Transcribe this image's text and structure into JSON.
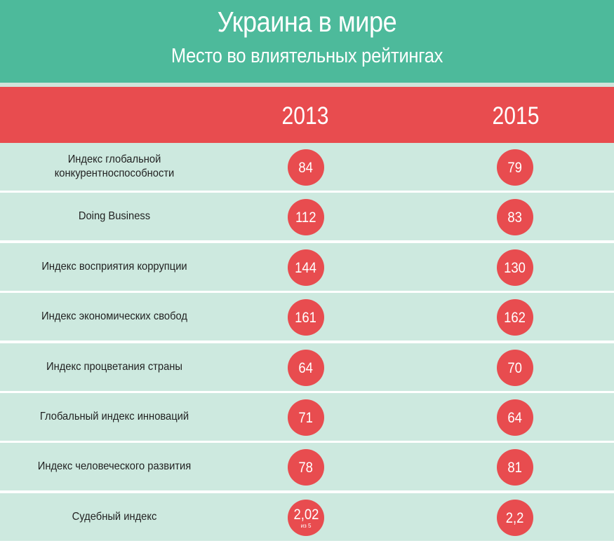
{
  "header": {
    "title": "Украина в мире",
    "subtitle": "Место во влиятельных рейтингах"
  },
  "colors": {
    "header_bg": "#4dba9b",
    "year_bar_bg": "#e84c4f",
    "row_bg": "#cde9df",
    "badge_bg": "#e84c4f"
  },
  "chart_data": {
    "type": "table",
    "title": "Украина в мире",
    "subtitle": "Место во влиятельных рейтингах",
    "columns": [
      "2013",
      "2015"
    ],
    "rows": [
      {
        "label": "Индекс глобальной\nконкурентноспособности",
        "values": [
          "84",
          "79"
        ]
      },
      {
        "label": "Doing Business",
        "values": [
          "112",
          "83"
        ]
      },
      {
        "label": "Индекс восприятия коррупции",
        "values": [
          "144",
          "130"
        ]
      },
      {
        "label": "Индекс экономических свобод",
        "values": [
          "161",
          "162"
        ]
      },
      {
        "label": "Индекс процветания страны",
        "values": [
          "64",
          "70"
        ]
      },
      {
        "label": "Глобальный индекс инноваций",
        "values": [
          "71",
          "64"
        ]
      },
      {
        "label": "Индекс человеческого развития",
        "values": [
          "78",
          "81"
        ]
      },
      {
        "label": "Судебный индекс",
        "values": [
          "2,02",
          "2,2"
        ],
        "notes": [
          "из 5",
          ""
        ]
      }
    ]
  }
}
